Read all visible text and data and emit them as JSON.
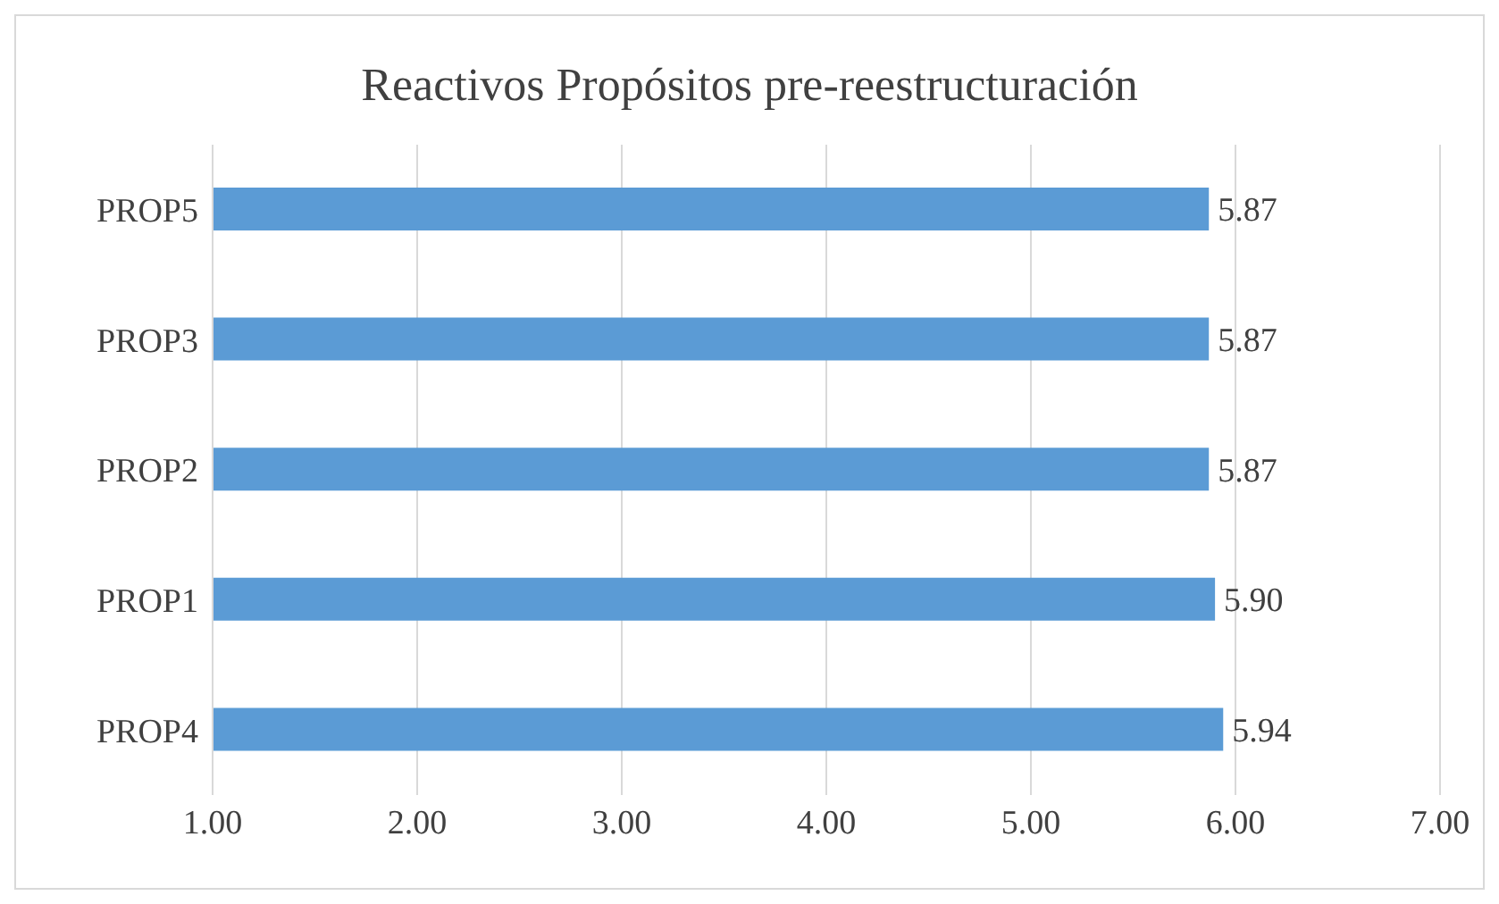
{
  "chart_data": {
    "type": "bar",
    "orientation": "horizontal",
    "title": "Reactivos Propósitos pre-reestructuración",
    "categories": [
      "PROP5",
      "PROP3",
      "PROP2",
      "PROP1",
      "PROP4"
    ],
    "values": [
      5.87,
      5.87,
      5.87,
      5.9,
      5.94
    ],
    "value_labels": [
      "5.87",
      "5.87",
      "5.87",
      "5.90",
      "5.94"
    ],
    "color": "#5b9bd5",
    "xlim": [
      1,
      7
    ],
    "xticks": [
      {
        "value": 1,
        "label": "1.00"
      },
      {
        "value": 2,
        "label": "2.00"
      },
      {
        "value": 3,
        "label": "3.00"
      },
      {
        "value": 4,
        "label": "4.00"
      },
      {
        "value": 5,
        "label": "5.00"
      },
      {
        "value": 6,
        "label": "6.00"
      },
      {
        "value": 7,
        "label": "7.00"
      }
    ],
    "grid": "x"
  }
}
